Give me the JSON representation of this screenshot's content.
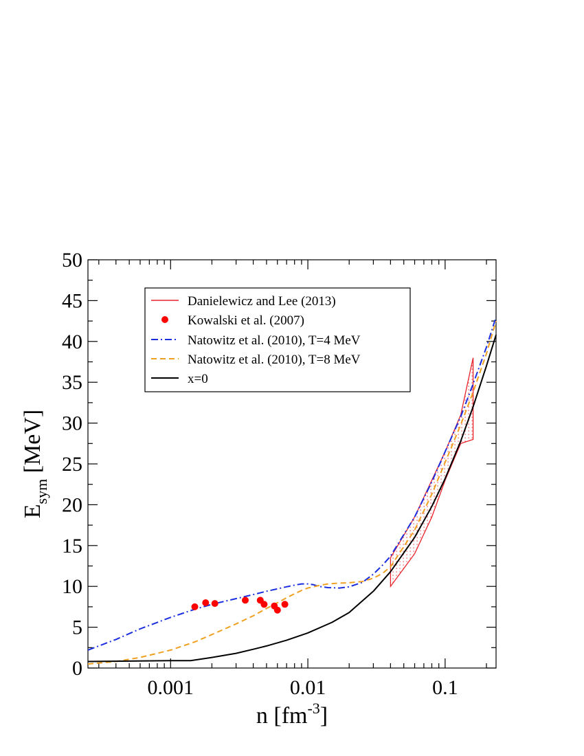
{
  "chart_data": {
    "type": "line",
    "xscale": "log",
    "xlim": [
      0.00025,
      0.235
    ],
    "ylim": [
      0,
      50
    ],
    "xlabel": {
      "base": "n [fm",
      "sup": "-3",
      "end": "]"
    },
    "ylabel": {
      "base": "E",
      "sub": "sym",
      "end": " [MeV]"
    },
    "xticks": [
      {
        "value": 0.001,
        "label": "0.001"
      },
      {
        "value": 0.01,
        "label": "0.01"
      },
      {
        "value": 0.1,
        "label": "0.1"
      }
    ],
    "yticks": [
      {
        "value": 0,
        "label": "0"
      },
      {
        "value": 5,
        "label": "5"
      },
      {
        "value": 10,
        "label": "10"
      },
      {
        "value": 15,
        "label": "15"
      },
      {
        "value": 20,
        "label": "20"
      },
      {
        "value": 25,
        "label": "25"
      },
      {
        "value": 30,
        "label": "30"
      },
      {
        "value": 35,
        "label": "35"
      },
      {
        "value": 40,
        "label": "40"
      },
      {
        "value": 45,
        "label": "45"
      },
      {
        "value": 50,
        "label": "50"
      }
    ],
    "legend": {
      "position": "top-left",
      "entries": [
        "Danielewicz and Lee (2013)",
        "Kowalski et al. (2007)",
        "Natowitz et al. (2010), T=4 MeV",
        "Natowitz et al. (2010), T=8 MeV",
        "x=0"
      ]
    },
    "colors": {
      "band": "#e8222a",
      "points": "#ff0000",
      "nat4": "#1a2ee0",
      "nat8": "#f0a020",
      "x0": "#000000"
    },
    "band": {
      "name": "Danielewicz and Lee (2013)",
      "polygon": [
        [
          0.04,
          10.0
        ],
        [
          0.06,
          14.0
        ],
        [
          0.08,
          18.5
        ],
        [
          0.1,
          23.0
        ],
        [
          0.13,
          27.5
        ],
        [
          0.16,
          28.0
        ],
        [
          0.16,
          38.0
        ],
        [
          0.13,
          31.0
        ],
        [
          0.1,
          26.5
        ],
        [
          0.08,
          23.0
        ],
        [
          0.06,
          18.5
        ],
        [
          0.04,
          13.5
        ]
      ]
    },
    "points": {
      "name": "Kowalski et al. (2007)",
      "x": [
        0.0015,
        0.0018,
        0.0021,
        0.0035,
        0.0045,
        0.0048,
        0.0057,
        0.006,
        0.0068
      ],
      "y": [
        7.5,
        8.0,
        7.9,
        8.3,
        8.3,
        7.8,
        7.6,
        7.1,
        7.8
      ]
    },
    "series": [
      {
        "name": "Natowitz et al. (2010), T=4 MeV",
        "style": "dash-dot",
        "x": [
          0.00025,
          0.0004,
          0.0006,
          0.001,
          0.0015,
          0.002,
          0.003,
          0.004,
          0.005,
          0.006,
          0.007,
          0.008,
          0.009,
          0.01,
          0.011,
          0.012,
          0.014,
          0.017,
          0.02,
          0.025,
          0.03,
          0.035,
          0.04,
          0.06,
          0.08,
          0.1,
          0.13,
          0.16,
          0.2,
          0.235
        ],
        "y": [
          2.2,
          3.5,
          4.8,
          6.2,
          7.2,
          7.8,
          8.5,
          9.0,
          9.4,
          9.7,
          9.95,
          10.15,
          10.3,
          10.3,
          10.2,
          10.0,
          9.85,
          9.8,
          9.95,
          10.5,
          11.5,
          12.6,
          13.7,
          18.5,
          22.8,
          26.5,
          30.8,
          34.8,
          39.3,
          43.0
        ]
      },
      {
        "name": "Natowitz et al. (2010), T=8 MeV",
        "style": "dashed",
        "x": [
          0.00025,
          0.0004,
          0.0006,
          0.001,
          0.0015,
          0.002,
          0.003,
          0.004,
          0.005,
          0.006,
          0.007,
          0.008,
          0.009,
          0.01,
          0.012,
          0.014,
          0.017,
          0.02,
          0.025,
          0.03,
          0.035,
          0.04,
          0.06,
          0.08,
          0.1,
          0.13,
          0.16,
          0.2,
          0.235
        ],
        "y": [
          0.5,
          0.8,
          1.3,
          2.2,
          3.2,
          4.1,
          5.4,
          6.4,
          7.3,
          8.0,
          8.6,
          9.1,
          9.5,
          9.8,
          10.1,
          10.3,
          10.4,
          10.45,
          10.6,
          11.0,
          11.6,
          12.4,
          16.9,
          21.3,
          25.2,
          29.8,
          33.8,
          38.5,
          42.5
        ]
      },
      {
        "name": "x=0",
        "style": "solid",
        "x": [
          0.00025,
          0.0005,
          0.001,
          0.0014,
          0.002,
          0.003,
          0.004,
          0.005,
          0.007,
          0.01,
          0.015,
          0.02,
          0.03,
          0.04,
          0.06,
          0.08,
          0.1,
          0.13,
          0.16,
          0.2,
          0.235
        ],
        "y": [
          0.8,
          0.85,
          0.9,
          0.9,
          1.3,
          1.8,
          2.3,
          2.7,
          3.4,
          4.3,
          5.6,
          6.8,
          9.4,
          11.8,
          16.0,
          19.8,
          23.2,
          27.8,
          32.0,
          37.0,
          40.8
        ]
      }
    ]
  }
}
